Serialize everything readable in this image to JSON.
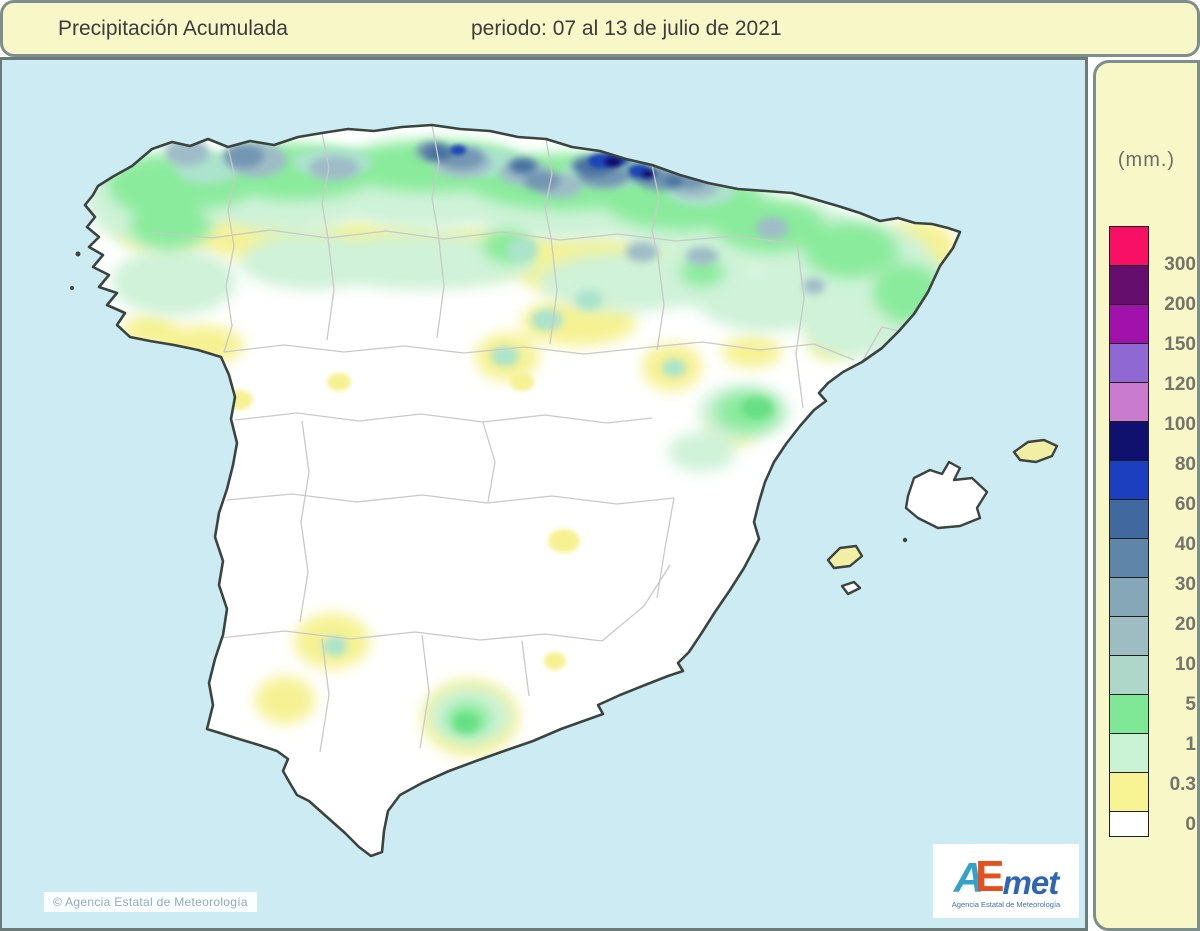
{
  "header": {
    "title": "Precipitación Acumulada",
    "period": "periodo: 07 al 13 de julio de 2021"
  },
  "legend": {
    "unit": "(mm.)",
    "bands": [
      {
        "color": "#F81064",
        "label": "300"
      },
      {
        "color": "#650E6E",
        "label": "200"
      },
      {
        "color": "#A112AC",
        "label": "150"
      },
      {
        "color": "#8F68D4",
        "label": "120"
      },
      {
        "color": "#C97BCF",
        "label": "100"
      },
      {
        "color": "#10106E",
        "label": "80"
      },
      {
        "color": "#1C3FC0",
        "label": "60"
      },
      {
        "color": "#41699F",
        "label": "40"
      },
      {
        "color": "#5F86A8",
        "label": "30"
      },
      {
        "color": "#86A7B8",
        "label": "20"
      },
      {
        "color": "#9DBDC2",
        "label": "10"
      },
      {
        "color": "#AFD7C9",
        "label": "5"
      },
      {
        "color": "#7FE896",
        "label": "1"
      },
      {
        "color": "#C9F3D4",
        "label": "0.3"
      },
      {
        "color": "#F8F493",
        "label": "0"
      },
      {
        "color": "#FFFFFF",
        "label": ""
      }
    ]
  },
  "map": {
    "sea_color": "#CDEBF3",
    "copyright": "© Agencia Estatal de Meteorología"
  },
  "logo": {
    "a": "A",
    "e": "E",
    "met": "met",
    "subtitle": "Agencia Estatal de Meteorología"
  }
}
